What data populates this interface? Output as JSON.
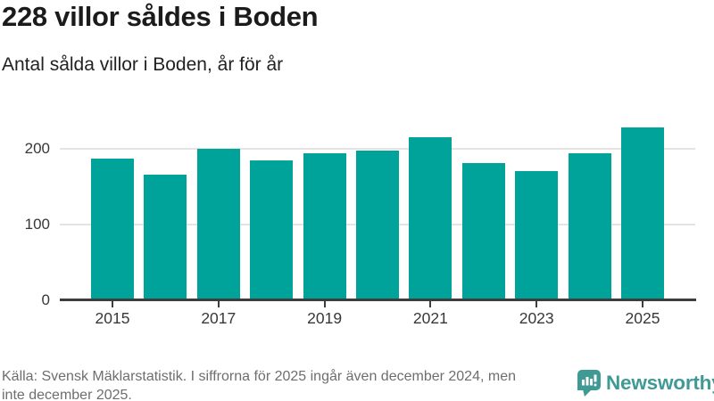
{
  "header": {
    "title": "228 villor såldes i Boden",
    "subtitle": "Antal sålda villor i Boden, år för år"
  },
  "chart_data": {
    "type": "bar",
    "title": "228 villor såldes i Boden",
    "subtitle": "Antal sålda villor i Boden, år för år",
    "categories": [
      "2015",
      "2016",
      "2017",
      "2018",
      "2019",
      "2020",
      "2021",
      "2022",
      "2023",
      "2024",
      "2025"
    ],
    "values": [
      186,
      165,
      199,
      184,
      193,
      197,
      215,
      181,
      170,
      193,
      228
    ],
    "xlabel": "",
    "ylabel": "",
    "ylim": [
      0,
      230
    ],
    "yticks": [
      0,
      100,
      200
    ],
    "xtick_labels": [
      "2015",
      "2017",
      "2019",
      "2021",
      "2023",
      "2025"
    ],
    "grid": true,
    "legend": "none",
    "bar_color": "#00a39a"
  },
  "footer": {
    "source_line1": "Källa: Svensk Mäklarstatistik. I siffrorna för 2025 ingår även december 2024, men",
    "source_line2": "inte december 2025.",
    "brand": "Newsworthy",
    "brand_color": "#3f9a95"
  }
}
